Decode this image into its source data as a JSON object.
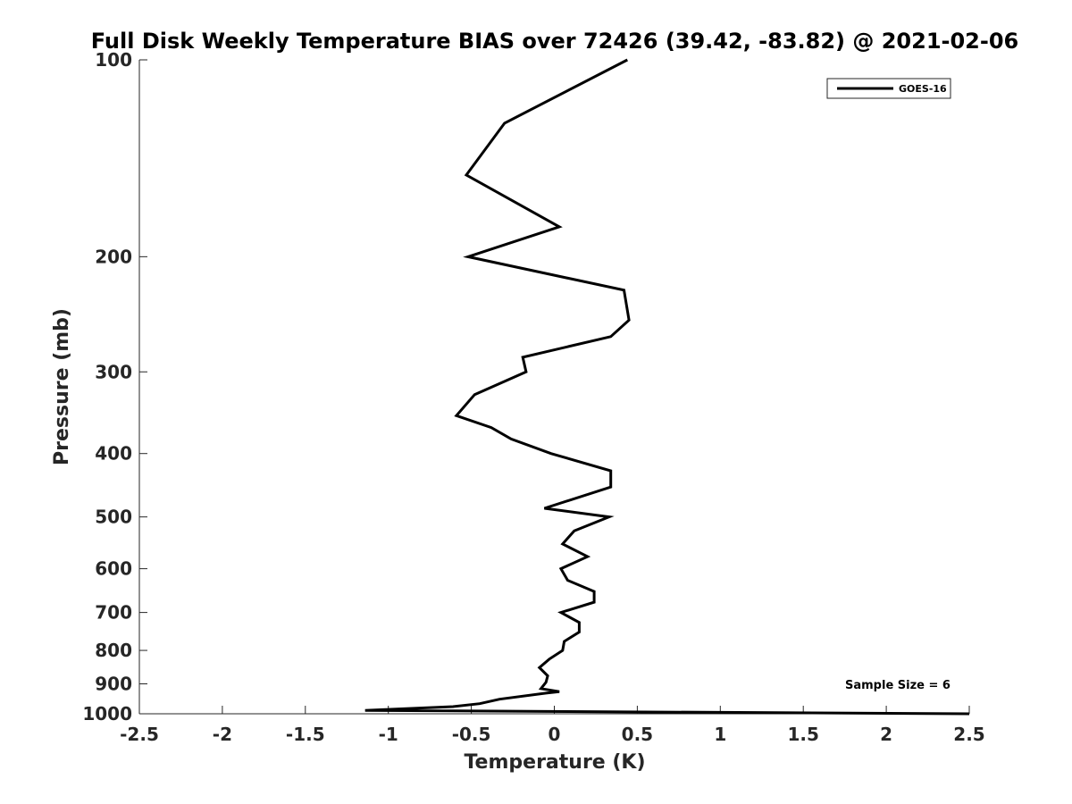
{
  "chart_data": {
    "type": "line",
    "title": "Full Disk Weekly Temperature BIAS over 72426 (39.42, -83.82) @ 2021-02-06",
    "xlabel": "Temperature (K)",
    "ylabel": "Pressure (mb)",
    "xlim": [
      -2.5,
      2.5
    ],
    "ylim": [
      1000,
      100
    ],
    "y_scale": "log",
    "y_reversed": true,
    "grid": false,
    "xticks": [
      -2.5,
      -2,
      -1.5,
      -1,
      -0.5,
      0,
      0.5,
      1,
      1.5,
      2,
      2.5
    ],
    "xtick_labels": [
      "-2.5",
      "-2",
      "-1.5",
      "-1",
      "-0.5",
      "0",
      "0.5",
      "1",
      "1.5",
      "2",
      "2.5"
    ],
    "yticks": [
      100,
      200,
      300,
      400,
      500,
      600,
      700,
      800,
      900,
      1000
    ],
    "ytick_labels": [
      "100",
      "200",
      "300",
      "400",
      "500",
      "600",
      "700",
      "800",
      "900",
      "1000"
    ],
    "legend_position": "top-right",
    "series": [
      {
        "name": "GOES-16",
        "color": "#000000",
        "points": [
          [
            0.44,
            100
          ],
          [
            -0.3,
            125
          ],
          [
            -0.53,
            150
          ],
          [
            0.03,
            180
          ],
          [
            -0.52,
            200
          ],
          [
            0.42,
            225
          ],
          [
            0.45,
            250
          ],
          [
            0.34,
            265
          ],
          [
            -0.19,
            285
          ],
          [
            -0.17,
            300
          ],
          [
            -0.48,
            325
          ],
          [
            -0.59,
            350
          ],
          [
            -0.38,
            365
          ],
          [
            -0.26,
            380
          ],
          [
            -0.02,
            400
          ],
          [
            0.34,
            425
          ],
          [
            0.34,
            450
          ],
          [
            -0.06,
            485
          ],
          [
            0.33,
            500
          ],
          [
            0.12,
            525
          ],
          [
            0.05,
            550
          ],
          [
            0.2,
            575
          ],
          [
            0.04,
            600
          ],
          [
            0.08,
            625
          ],
          [
            0.24,
            650
          ],
          [
            0.24,
            675
          ],
          [
            0.04,
            700
          ],
          [
            0.15,
            725
          ],
          [
            0.15,
            750
          ],
          [
            0.06,
            775
          ],
          [
            0.05,
            800
          ],
          [
            -0.03,
            825
          ],
          [
            -0.09,
            850
          ],
          [
            -0.04,
            875
          ],
          [
            -0.05,
            895
          ],
          [
            -0.08,
            915
          ],
          [
            0.03,
            925
          ],
          [
            -0.05,
            930
          ],
          [
            -0.33,
            950
          ],
          [
            -0.45,
            965
          ],
          [
            -0.61,
            975
          ],
          [
            -1.14,
            988
          ],
          [
            2.5,
            1000
          ]
        ]
      }
    ],
    "annotations": [
      "Sample Size = 6"
    ]
  }
}
